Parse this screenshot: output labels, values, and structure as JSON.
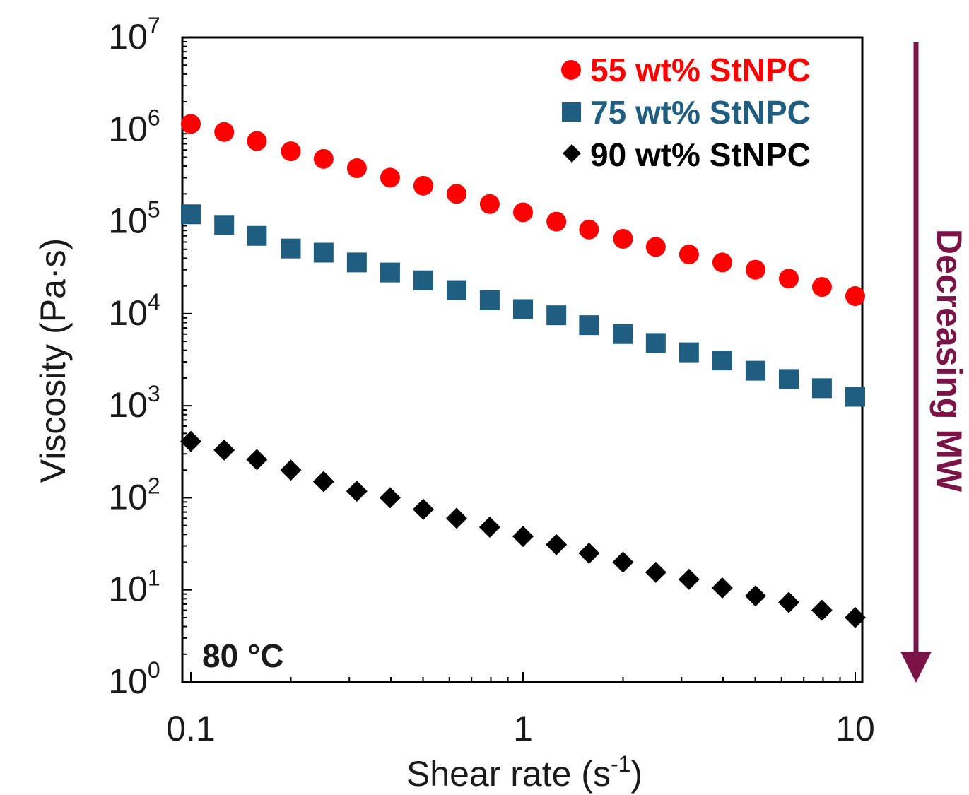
{
  "chart_data": {
    "type": "scatter",
    "title": "",
    "xlabel": "Shear rate (s",
    "xlabel_sup": "-1",
    "xlabel_end": ")",
    "ylabel": "Viscosity (Pa·s)",
    "x_scale": "log",
    "y_scale": "log",
    "xlim": [
      0.1,
      10
    ],
    "ylim": [
      1,
      10000000
    ],
    "x_ticks": [
      {
        "value": 0.1,
        "label": "0.1"
      },
      {
        "value": 1,
        "label": "1"
      },
      {
        "value": 10,
        "label": "10"
      }
    ],
    "y_ticks": [
      {
        "value": 1,
        "base": "10",
        "exp": "0"
      },
      {
        "value": 10,
        "base": "10",
        "exp": "1"
      },
      {
        "value": 100,
        "base": "10",
        "exp": "2"
      },
      {
        "value": 1000,
        "base": "10",
        "exp": "3"
      },
      {
        "value": 10000,
        "base": "10",
        "exp": "4"
      },
      {
        "value": 100000,
        "base": "10",
        "exp": "5"
      },
      {
        "value": 1000000,
        "base": "10",
        "exp": "6"
      },
      {
        "value": 10000000,
        "base": "10",
        "exp": "7"
      }
    ],
    "grid": false,
    "legend_position": "top-right",
    "annotation": "80 °C",
    "side_label": "Decreasing MW",
    "side_label_color": "#7a1446",
    "x": [
      0.1,
      0.126,
      0.158,
      0.2,
      0.251,
      0.316,
      0.398,
      0.501,
      0.631,
      0.794,
      1.0,
      1.26,
      1.58,
      2.0,
      2.51,
      3.16,
      3.98,
      5.01,
      6.31,
      7.94,
      10.0
    ],
    "series": [
      {
        "name": "55 wt% StNPC",
        "marker": "circle",
        "color": "#ff0000",
        "values": [
          1150000,
          940000,
          750000,
          580000,
          480000,
          380000,
          300000,
          245000,
          200000,
          155000,
          126000,
          100000,
          82000,
          65000,
          53000,
          44000,
          36000,
          30000,
          24000,
          19500,
          15500
        ]
      },
      {
        "name": "75 wt% StNPC",
        "marker": "square",
        "color": "#1f5e80",
        "values": [
          120000,
          92000,
          70000,
          51000,
          46000,
          36000,
          28000,
          23000,
          18000,
          14000,
          11200,
          9600,
          7500,
          6000,
          4800,
          3800,
          3100,
          2400,
          1950,
          1550,
          1250
        ]
      },
      {
        "name": "90 wt% StNPC",
        "marker": "diamond",
        "color": "#000000",
        "values": [
          410,
          330,
          260,
          200,
          150,
          118,
          100,
          75,
          60,
          48,
          38,
          31,
          25,
          20,
          15.5,
          13,
          10.5,
          8.6,
          7.3,
          6.0,
          5.0
        ]
      }
    ]
  }
}
